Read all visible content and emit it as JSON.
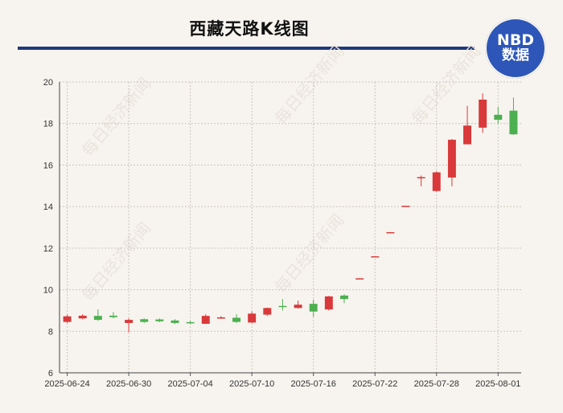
{
  "title": "西藏天路K线图",
  "badge": {
    "line1": "NBD",
    "line2": "数据"
  },
  "watermark": "每日经济新闻",
  "colors": {
    "up": "#d9393a",
    "down": "#4caf50",
    "rule": "#1f3a7a",
    "badge": "#2d56b8"
  },
  "chart_data": {
    "type": "candlestick",
    "title": "西藏天路K线图",
    "ylim": [
      6,
      20
    ],
    "yticks": [
      6,
      8,
      10,
      12,
      14,
      16,
      18,
      20
    ],
    "xticks": [
      "2025-06-24",
      "2025-06-30",
      "2025-07-04",
      "2025-07-10",
      "2025-07-16",
      "2025-07-22",
      "2025-07-28",
      "2025-08-01"
    ],
    "grid": true,
    "candles": [
      {
        "i": 0,
        "open": 8.45,
        "close": 8.72,
        "high": 8.8,
        "low": 8.4
      },
      {
        "i": 1,
        "open": 8.62,
        "close": 8.75,
        "high": 8.82,
        "low": 8.58
      },
      {
        "i": 2,
        "open": 8.74,
        "close": 8.55,
        "high": 9.05,
        "low": 8.5
      },
      {
        "i": 3,
        "open": 8.75,
        "close": 8.68,
        "high": 8.92,
        "low": 8.62
      },
      {
        "i": 4,
        "open": 8.4,
        "close": 8.55,
        "high": 8.62,
        "low": 7.95
      },
      {
        "i": 5,
        "open": 8.58,
        "close": 8.45,
        "high": 8.62,
        "low": 8.4
      },
      {
        "i": 6,
        "open": 8.57,
        "close": 8.48,
        "high": 8.62,
        "low": 8.44
      },
      {
        "i": 7,
        "open": 8.52,
        "close": 8.4,
        "high": 8.58,
        "low": 8.35
      },
      {
        "i": 8,
        "open": 8.44,
        "close": 8.4,
        "high": 8.5,
        "low": 8.35
      },
      {
        "i": 9,
        "open": 8.36,
        "close": 8.74,
        "high": 8.82,
        "low": 8.35
      },
      {
        "i": 10,
        "open": 8.62,
        "close": 8.67,
        "high": 8.73,
        "low": 8.6
      },
      {
        "i": 11,
        "open": 8.65,
        "close": 8.45,
        "high": 8.82,
        "low": 8.4
      },
      {
        "i": 12,
        "open": 8.42,
        "close": 8.85,
        "high": 8.95,
        "low": 8.4
      },
      {
        "i": 13,
        "open": 8.8,
        "close": 9.12,
        "high": 9.14,
        "low": 8.74
      },
      {
        "i": 14,
        "open": 9.22,
        "close": 9.18,
        "high": 9.55,
        "low": 9.0
      },
      {
        "i": 15,
        "open": 9.12,
        "close": 9.28,
        "high": 9.48,
        "low": 9.1
      },
      {
        "i": 16,
        "open": 9.32,
        "close": 8.95,
        "high": 9.52,
        "low": 8.7
      },
      {
        "i": 17,
        "open": 9.05,
        "close": 9.68,
        "high": 9.7,
        "low": 9.0
      },
      {
        "i": 18,
        "open": 9.72,
        "close": 9.55,
        "high": 9.78,
        "low": 9.35
      },
      {
        "i": 19,
        "open": 10.53,
        "close": 10.55,
        "high": 10.55,
        "low": 10.53
      },
      {
        "i": 20,
        "open": 11.59,
        "close": 11.61,
        "high": 11.61,
        "low": 11.59
      },
      {
        "i": 21,
        "open": 12.75,
        "close": 12.77,
        "high": 12.77,
        "low": 12.75
      },
      {
        "i": 22,
        "open": 14.02,
        "close": 14.04,
        "high": 14.04,
        "low": 14.0
      },
      {
        "i": 23,
        "open": 15.38,
        "close": 15.42,
        "high": 15.5,
        "low": 14.98
      },
      {
        "i": 24,
        "open": 14.75,
        "close": 15.65,
        "high": 15.7,
        "low": 14.72
      },
      {
        "i": 25,
        "open": 15.4,
        "close": 17.22,
        "high": 17.25,
        "low": 14.98
      },
      {
        "i": 26,
        "open": 17.0,
        "close": 17.9,
        "high": 18.85,
        "low": 17.0
      },
      {
        "i": 27,
        "open": 17.8,
        "close": 19.15,
        "high": 19.45,
        "low": 17.55
      },
      {
        "i": 28,
        "open": 18.42,
        "close": 18.18,
        "high": 18.8,
        "low": 18.0
      },
      {
        "i": 29,
        "open": 18.62,
        "close": 17.48,
        "high": 19.25,
        "low": 17.45
      }
    ],
    "xtick_index": [
      0,
      4,
      8,
      12,
      16,
      20,
      24,
      28
    ]
  }
}
